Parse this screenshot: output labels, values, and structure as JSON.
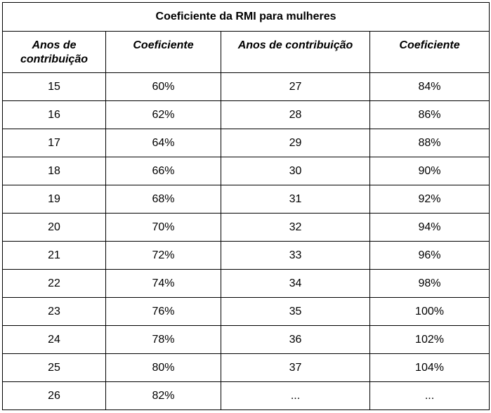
{
  "table": {
    "title": "Coeficiente da RMI para mulheres",
    "headers": [
      "Anos de contribuição",
      "Coeficiente",
      "Anos de contribuição",
      "Coeficiente"
    ],
    "rows": [
      [
        "15",
        "60%",
        "27",
        "84%"
      ],
      [
        "16",
        "62%",
        "28",
        "86%"
      ],
      [
        "17",
        "64%",
        "29",
        "88%"
      ],
      [
        "18",
        "66%",
        "30",
        "90%"
      ],
      [
        "19",
        "68%",
        "31",
        "92%"
      ],
      [
        "20",
        "70%",
        "32",
        "94%"
      ],
      [
        "21",
        "72%",
        "33",
        "96%"
      ],
      [
        "22",
        "74%",
        "34",
        "98%"
      ],
      [
        "23",
        "76%",
        "35",
        "100%"
      ],
      [
        "24",
        "78%",
        "36",
        "102%"
      ],
      [
        "25",
        "80%",
        "37",
        "104%"
      ],
      [
        "26",
        "82%",
        "...",
        "..."
      ]
    ]
  }
}
